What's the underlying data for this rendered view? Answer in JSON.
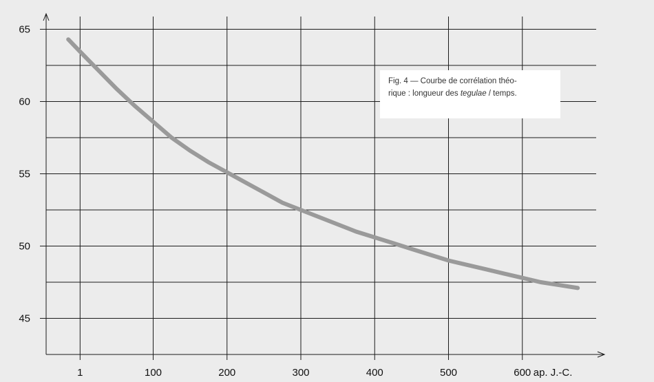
{
  "caption": {
    "line1": "Fig. 4 — Courbe de corrélation théo-",
    "line2_before": "rique : longueur des ",
    "line2_italic": "tegulae",
    "line2_after": " / temps."
  },
  "chart_data": {
    "type": "line",
    "title": "",
    "xlabel": "",
    "ylabel": "",
    "x_unit_label": "ap. J.-C.",
    "xlim": [
      -45,
      700
    ],
    "ylim": [
      42.5,
      66.5
    ],
    "x_ticks": [
      1,
      100,
      200,
      300,
      400,
      500,
      600
    ],
    "x_tick_labels": [
      "1",
      "100",
      "200",
      "300",
      "400",
      "500",
      "600"
    ],
    "y_ticks": [
      45,
      50,
      55,
      60,
      65
    ],
    "y_tick_labels": [
      "45",
      "50",
      "55",
      "60",
      "65"
    ],
    "y_gridlines": [
      45,
      47.5,
      50,
      52.5,
      55,
      57.5,
      60,
      62.5,
      65
    ],
    "grid": true,
    "legend": "none",
    "series": [
      {
        "color": "#9a9a9a",
        "x": [
          -15,
          0,
          25,
          50,
          75,
          100,
          125,
          150,
          175,
          200,
          225,
          250,
          275,
          300,
          325,
          350,
          375,
          400,
          425,
          450,
          475,
          500,
          525,
          550,
          575,
          600,
          625,
          650,
          675
        ],
        "y": [
          64.3,
          63.5,
          62.2,
          60.9,
          59.7,
          58.6,
          57.5,
          56.6,
          55.8,
          55.1,
          54.4,
          53.7,
          53.0,
          52.5,
          52.0,
          51.5,
          51.0,
          50.6,
          50.2,
          49.8,
          49.4,
          49.0,
          48.7,
          48.4,
          48.1,
          47.8,
          47.5,
          47.3,
          47.1
        ]
      }
    ]
  }
}
